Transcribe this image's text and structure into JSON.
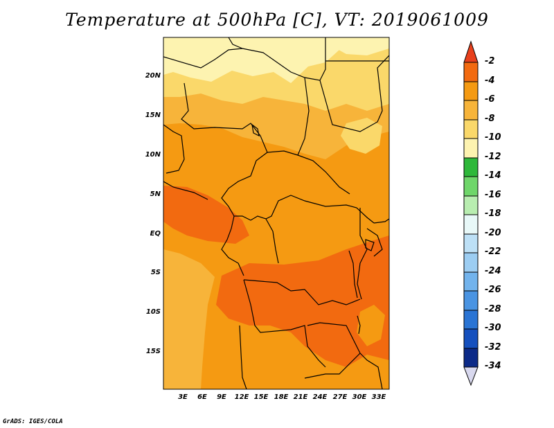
{
  "title": "Temperature at 500hPa [C], VT: 2019061009",
  "map": {
    "lat_labels": [
      "20N",
      "15N",
      "10N",
      "5N",
      "EQ",
      "5S",
      "10S",
      "15S"
    ],
    "lon_labels": [
      "3E",
      "6E",
      "9E",
      "12E",
      "15E",
      "18E",
      "21E",
      "24E",
      "27E",
      "30E",
      "33E"
    ]
  },
  "colorbar": {
    "labels": [
      "-2",
      "-4",
      "-6",
      "-8",
      "-10",
      "-12",
      "-14",
      "-16",
      "-18",
      "-20",
      "-22",
      "-24",
      "-26",
      "-28",
      "-30",
      "-32",
      "-34"
    ],
    "colors": {
      "above_-2": "#e8401c",
      "-4_to_-2": "#f26a10",
      "-6_to_-4": "#f59a12",
      "-8_to_-6": "#f7b43a",
      "-10_to_-8": "#fad86a",
      "-12_to_-10": "#fdf3b0",
      "-14_to_-12": "#2eb83a",
      "-16_to_-14": "#6fd66a",
      "-18_to_-16": "#b8edb0",
      "-20_to_-18": "#e8f8f8",
      "-22_to_-20": "#bde0f6",
      "-24_to_-22": "#9ccdf2",
      "-26_to_-24": "#72b3ec",
      "-28_to_-26": "#4a94e2",
      "-30_to_-28": "#2a74d4",
      "-32_to_-30": "#1550be",
      "-34_to_-32": "#0c2a88",
      "below_-34": "#d8d8ee"
    }
  },
  "credit": "GrADS: IGES/COLA"
}
